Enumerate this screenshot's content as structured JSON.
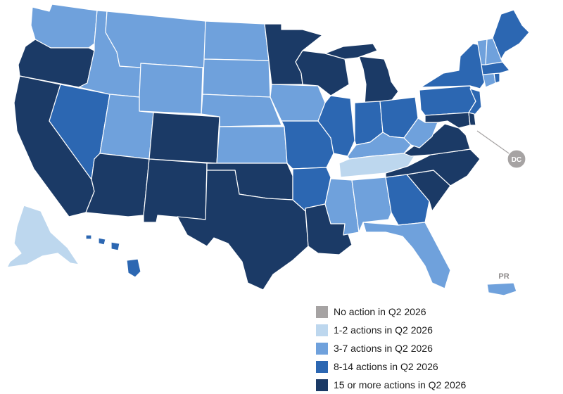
{
  "colors": {
    "no_action": "#a6a3a3",
    "one_two": "#bdd7ee",
    "three_seven": "#6fa1dc",
    "eight_fourteen": "#2c67b2",
    "fifteen_plus": "#1b3a66",
    "border": "#ffffff"
  },
  "legend": {
    "items": [
      {
        "key": "no_action",
        "label": "No action in Q2 2026"
      },
      {
        "key": "one_two",
        "label": "1-2 actions in Q2 2026"
      },
      {
        "key": "three_seven",
        "label": "3-7 actions in Q2 2026"
      },
      {
        "key": "eight_fourteen",
        "label": "8-14 actions in Q2 2026"
      },
      {
        "key": "fifteen_plus",
        "label": "15 or more actions in Q2 2026"
      }
    ]
  },
  "territory_labels": {
    "dc": "DC",
    "pr": "PR"
  },
  "states": {
    "WA": "three_seven",
    "OR": "fifteen_plus",
    "CA": "fifteen_plus",
    "NV": "eight_fourteen",
    "ID": "three_seven",
    "MT": "three_seven",
    "WY": "three_seven",
    "UT": "three_seven",
    "AZ": "fifteen_plus",
    "CO": "fifteen_plus",
    "NM": "fifteen_plus",
    "ND": "three_seven",
    "SD": "three_seven",
    "NE": "three_seven",
    "KS": "three_seven",
    "OK": "fifteen_plus",
    "TX": "fifteen_plus",
    "MN": "fifteen_plus",
    "IA": "three_seven",
    "MO": "eight_fourteen",
    "AR": "eight_fourteen",
    "LA": "fifteen_plus",
    "WI": "fifteen_plus",
    "IL": "eight_fourteen",
    "MI": "fifteen_plus",
    "IN": "eight_fourteen",
    "OH": "eight_fourteen",
    "KY": "three_seven",
    "TN": "one_two",
    "MS": "three_seven",
    "AL": "three_seven",
    "GA": "eight_fourteen",
    "FL": "three_seven",
    "SC": "fifteen_plus",
    "NC": "fifteen_plus",
    "VA": "fifteen_plus",
    "WV": "three_seven",
    "PA": "eight_fourteen",
    "NY": "eight_fourteen",
    "VT": "three_seven",
    "NH": "three_seven",
    "ME": "eight_fourteen",
    "MA": "eight_fourteen",
    "CT": "three_seven",
    "RI": "eight_fourteen",
    "NJ": "eight_fourteen",
    "DE": "fifteen_plus",
    "MD": "fifteen_plus",
    "AK": "one_two",
    "HI": "eight_fourteen",
    "DC": "no_action",
    "PR": "three_seven"
  }
}
